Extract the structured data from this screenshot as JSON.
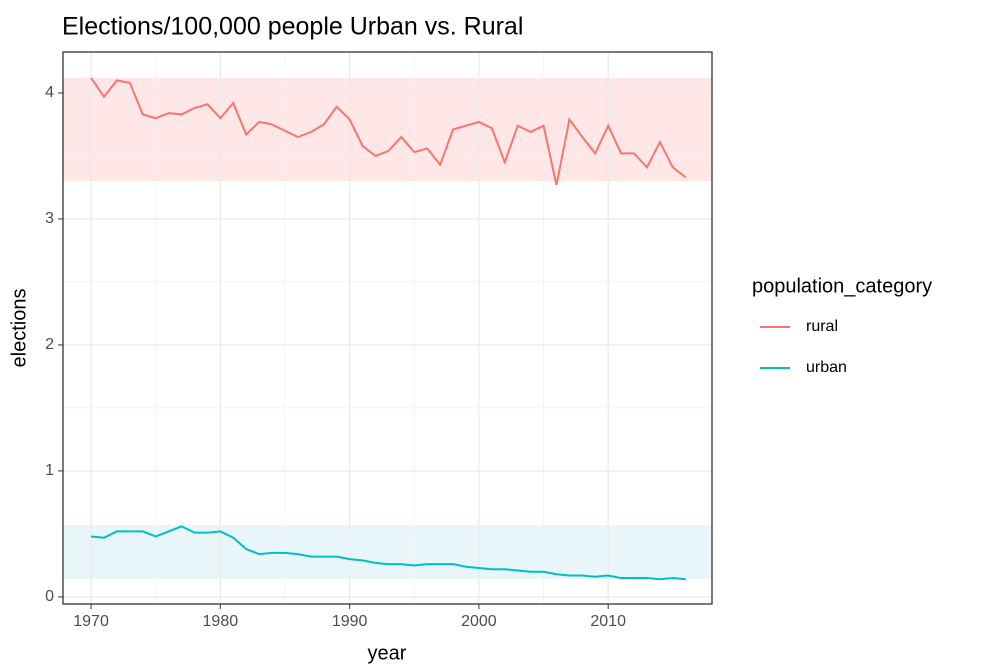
{
  "chart_data": {
    "type": "line",
    "title": "Elections/100,000 people Urban vs. Rural",
    "x_label": "year",
    "y_label": "elections",
    "legend_title": "population_category",
    "legend_position": "right",
    "grid": true,
    "xlim": [
      1967.83,
      2018.03
    ],
    "xticks": [
      1970,
      1980,
      1990,
      2000,
      2010
    ],
    "ylim": [
      -0.056,
      4.325
    ],
    "yticks": [
      0,
      1,
      2,
      3,
      4
    ],
    "bands": [
      {
        "range": [
          3.3,
          4.12
        ],
        "color": "#ffe6e7"
      },
      {
        "range": [
          0.143,
          0.571
        ],
        "color": "#e9f6f9"
      }
    ],
    "x": [
      1970,
      1971,
      1972,
      1973,
      1974,
      1975,
      1976,
      1977,
      1978,
      1979,
      1980,
      1981,
      1982,
      1983,
      1984,
      1985,
      1986,
      1987,
      1988,
      1989,
      1990,
      1991,
      1992,
      1993,
      1994,
      1995,
      1996,
      1997,
      1998,
      1999,
      2000,
      2001,
      2002,
      2003,
      2004,
      2005,
      2006,
      2007,
      2008,
      2009,
      2010,
      2011,
      2012,
      2013,
      2014,
      2015,
      2016
    ],
    "series": [
      {
        "name": "rural",
        "color": "#f8766d",
        "values": [
          4.12,
          3.97,
          4.1,
          4.08,
          3.83,
          3.8,
          3.84,
          3.83,
          3.88,
          3.91,
          3.8,
          3.92,
          3.67,
          3.77,
          3.75,
          3.7,
          3.65,
          3.69,
          3.75,
          3.89,
          3.79,
          3.58,
          3.5,
          3.54,
          3.65,
          3.53,
          3.56,
          3.43,
          3.71,
          3.74,
          3.77,
          3.72,
          3.45,
          3.74,
          3.69,
          3.74,
          3.27,
          3.79,
          3.65,
          3.52,
          3.74,
          3.52,
          3.52,
          3.41,
          3.61,
          3.41,
          3.33
        ]
      },
      {
        "name": "urban",
        "color": "#00bfc4",
        "values": [
          0.48,
          0.47,
          0.52,
          0.52,
          0.52,
          0.48,
          0.52,
          0.56,
          0.51,
          0.51,
          0.52,
          0.47,
          0.38,
          0.34,
          0.35,
          0.35,
          0.34,
          0.32,
          0.32,
          0.32,
          0.3,
          0.29,
          0.27,
          0.26,
          0.26,
          0.25,
          0.26,
          0.26,
          0.26,
          0.24,
          0.23,
          0.22,
          0.22,
          0.21,
          0.2,
          0.2,
          0.18,
          0.17,
          0.17,
          0.16,
          0.17,
          0.15,
          0.15,
          0.15,
          0.14,
          0.15,
          0.14
        ]
      }
    ]
  }
}
